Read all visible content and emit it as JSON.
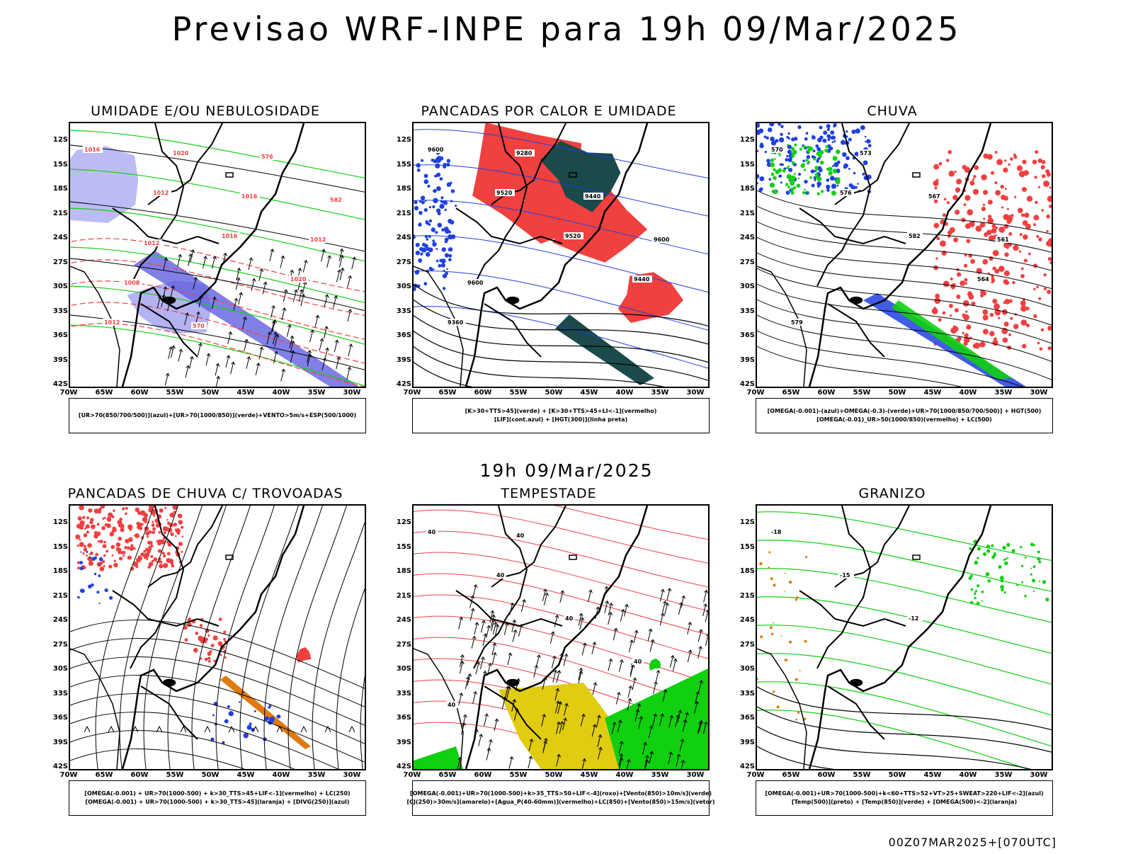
{
  "header": {
    "title": "Previsao WRF-INPE  para 19h 09/Mar/2025"
  },
  "middle": {
    "date": "19h 09/Mar/2025"
  },
  "footer": {
    "run": "00Z07MAR2025+[070UTC]"
  },
  "axes": {
    "lat_labels": [
      "12S",
      "15S",
      "18S",
      "21S",
      "24S",
      "27S",
      "30S",
      "33S",
      "36S",
      "39S",
      "42S"
    ],
    "lon_labels": [
      "70W",
      "65W",
      "60W",
      "55W",
      "50W",
      "45W",
      "40W",
      "35W",
      "30W"
    ]
  },
  "colors": {
    "red": "#f04040",
    "blue": "#2040e0",
    "green": "#10d010",
    "lavender": "#a0a0f0",
    "dark_teal": "#1a4a4a",
    "yellow": "#e0cc10",
    "orange": "#e07a10",
    "coast": "#000000"
  },
  "panels": [
    {
      "id": "umidade",
      "title": "UMIDADE E/OU NEBULOSIDADE",
      "legend": [
        "[UR>70(850/700/500)](azul)+[UR>70(1000/850)](verde)+VENTO>5m/s+ESP(500/1000)"
      ],
      "contour_labels": [
        "1016",
        "1012",
        "1016",
        "1020",
        "1012",
        "1020",
        "1016",
        "1012",
        "1008",
        "570",
        "576",
        "582",
        "1012"
      ]
    },
    {
      "id": "pancadas-calor",
      "title": "PANCADAS POR CALOR E UMIDADE",
      "legend": [
        "[K>30+TTS>45](verde) + [K>30+TTS>45+LI<-1](vermelho)",
        "[LIF](cont.azul) + [HGT(300)](linha preta)"
      ],
      "contour_labels": [
        "9600",
        "9520",
        "9520",
        "9440",
        "9360",
        "9280",
        "9440",
        "9600",
        "9600"
      ]
    },
    {
      "id": "chuva",
      "title": "CHUVA",
      "legend": [
        "[OMEGA(-0.001)-(azul)+OMEGA(-0.3)-(verde)+UR>70(1000/850/700/500)] + HGT(500)",
        "[OMEGA(-0.01)_UR>50(1000/850)(vermelho) + LC(500)"
      ],
      "contour_labels": [
        "570",
        "576",
        "582",
        "564",
        "579",
        "573",
        "567",
        "561"
      ]
    },
    {
      "id": "trovoadas",
      "title": "PANCADAS DE CHUVA C/ TROVOADAS",
      "legend": [
        "[OMEGA(-0.001) + UR>70(1000-500) + k>30_TTS>45+LIF<-1](vermelho) + LC(250)",
        "[OMEGA(-0.001) + UR>70(1000-500) + k>30_TTS>45](laranja) + [DIVG(250)](azul)"
      ],
      "contour_labels": []
    },
    {
      "id": "tempestade",
      "title": "TEMPESTADE",
      "legend": [
        "[OMEGA(-0.001)+UR>70(1000-500)+k>35_TTS>50+LIF<-4](roxo)+[Vento(850)>10m/s](verde)",
        "[CJ(250)>30m/s](amarelo)+[Agua_P(40-60mm)](vermelho)+LC(850)+[Vento(850)>15m/s](vetor)"
      ],
      "contour_labels": [
        "40",
        "40",
        "40",
        "40",
        "40",
        "40"
      ]
    },
    {
      "id": "granizo",
      "title": "GRANIZO",
      "legend": [
        "[OMEGA(-0.001)+UR>70(1000-500)+k<60+TTS>52+VT>25+SWEAT>220+LIF<-2](azul)",
        "[Temp(500)](preto) + [Temp(850)](verde) + [OMEGA(500)<-2](laranja)"
      ],
      "contour_labels": [
        "-18",
        "-15",
        "-12"
      ]
    }
  ]
}
